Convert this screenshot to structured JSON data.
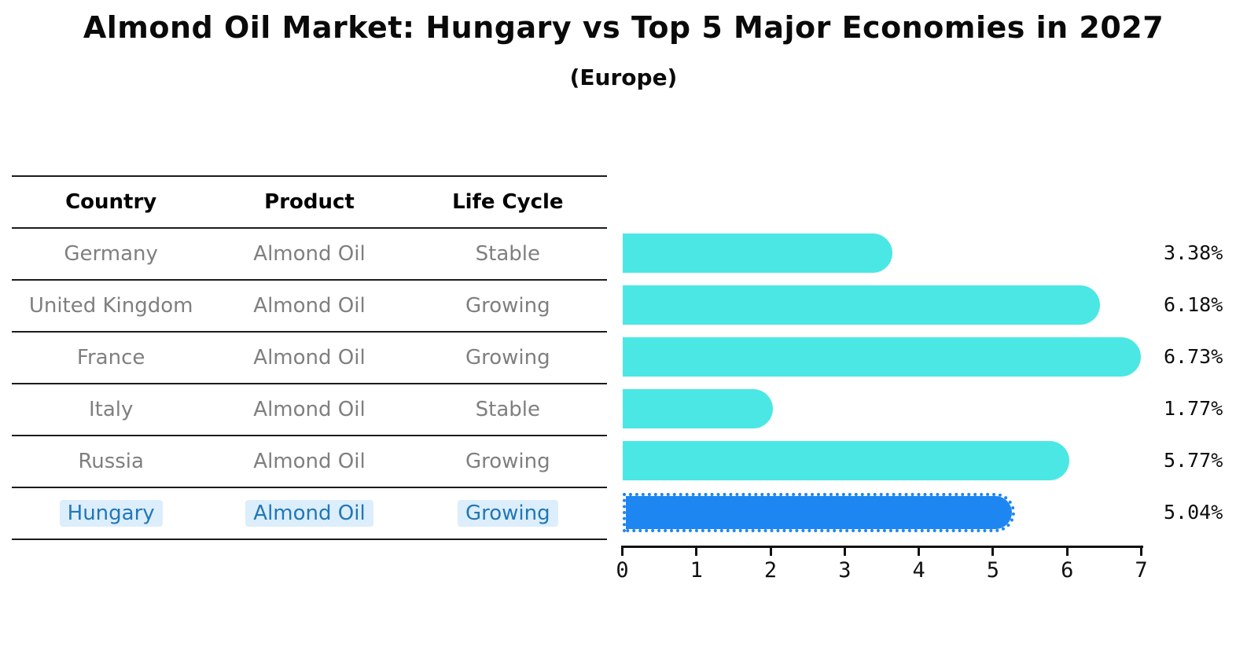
{
  "table": {
    "columns": [
      "Country",
      "Product",
      "Life Cycle"
    ],
    "rows": [
      {
        "country": "Germany",
        "product": "Almond Oil",
        "life_cycle": "Stable",
        "highlight": false
      },
      {
        "country": "United Kingdom",
        "product": "Almond Oil",
        "life_cycle": "Growing",
        "highlight": false
      },
      {
        "country": "France",
        "product": "Almond Oil",
        "life_cycle": "Growing",
        "highlight": false
      },
      {
        "country": "Italy",
        "product": "Almond Oil",
        "life_cycle": "Stable",
        "highlight": false
      },
      {
        "country": "Russia",
        "product": "Almond Oil",
        "life_cycle": "Growing",
        "highlight": false
      },
      {
        "country": "Hungary",
        "product": "Almond Oil",
        "life_cycle": "Growing",
        "highlight": true
      }
    ]
  },
  "chart_data": {
    "type": "bar",
    "orientation": "horizontal",
    "title": "Almond Oil Market: Hungary vs Top 5 Major Economies in 2027",
    "subtitle": "(Europe)",
    "categories": [
      "Germany",
      "United Kingdom",
      "France",
      "Italy",
      "Russia",
      "Hungary"
    ],
    "values": [
      3.38,
      6.18,
      6.73,
      1.77,
      5.77,
      5.04
    ],
    "value_labels": [
      "3.38%",
      "6.18%",
      "6.73%",
      "1.77%",
      "5.77%",
      "5.04%"
    ],
    "highlight_category": "Hungary",
    "xlim": [
      0,
      7
    ],
    "x_ticks": [
      0,
      1,
      2,
      3,
      4,
      5,
      6,
      7
    ],
    "grid": false,
    "legend": false,
    "colors": {
      "bar": "#4BE7E4",
      "highlight_bar": "#1E86F0",
      "highlight_text": "#1F77B9",
      "highlight_text_bg": "#DCEEFB",
      "row_text": "#7F7F7F",
      "header_text": "#000000",
      "axis": "#111111",
      "value_label": "#0D0D0D"
    }
  }
}
